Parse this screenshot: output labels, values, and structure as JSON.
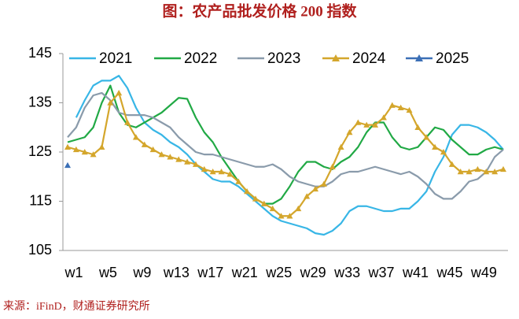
{
  "chart_data": {
    "type": "line",
    "title": "图：农产品批发价格 200 指数",
    "source": "来源：iFinD，财通证券研究所",
    "categories": [
      "w1",
      null,
      null,
      null,
      "w5",
      null,
      null,
      null,
      "w9",
      null,
      null,
      null,
      "w13",
      null,
      null,
      null,
      "w17",
      null,
      null,
      null,
      "w21",
      null,
      null,
      null,
      "w25",
      null,
      null,
      null,
      "w29",
      null,
      null,
      null,
      "w33",
      null,
      null,
      null,
      "w37",
      null,
      null,
      null,
      "w41",
      null,
      null,
      null,
      "w45",
      null,
      null,
      null,
      "w49",
      null,
      null,
      null
    ],
    "ylim": [
      105,
      145
    ],
    "yticks": [
      105,
      115,
      125,
      135,
      145
    ],
    "grid": false,
    "series": [
      {
        "name": "2021",
        "color": "#38b6e6",
        "marker": false,
        "values": [
          null,
          132,
          135.5,
          138.5,
          139.5,
          139.5,
          140.5,
          138,
          134,
          131,
          129.5,
          128.5,
          127,
          126,
          124.5,
          122.5,
          121,
          119.5,
          119,
          119,
          118,
          116.5,
          115,
          113.5,
          112,
          111,
          110.5,
          110,
          109.5,
          108.5,
          108.2,
          109,
          110.5,
          113,
          114,
          114,
          113.5,
          113,
          113,
          113.5,
          113.5,
          115,
          117,
          121,
          124,
          128.5,
          130.5,
          130.5,
          130,
          129,
          127.5,
          125.5
        ]
      },
      {
        "name": "2022",
        "color": "#21a945",
        "marker": false,
        "values": [
          127,
          127.5,
          128,
          130,
          135,
          138.5,
          133,
          130.5,
          130,
          131,
          132,
          133,
          134.5,
          136,
          135.8,
          132,
          129,
          127,
          124,
          121.5,
          119,
          117,
          115.5,
          114.5,
          114.5,
          115.5,
          118,
          121,
          123,
          123,
          122,
          121.5,
          123,
          124,
          126,
          129,
          131,
          131,
          128,
          126,
          125.5,
          126,
          128,
          130,
          129.5,
          127.5,
          126,
          124.5,
          124.5,
          125.5,
          126,
          125.5
        ]
      },
      {
        "name": "2023",
        "color": "#8a9bab",
        "marker": false,
        "values": [
          128,
          130,
          134,
          136.5,
          137,
          135.5,
          133,
          132.5,
          132.5,
          132.5,
          132,
          131,
          130,
          128,
          126.5,
          125,
          124.5,
          124.5,
          124,
          123.5,
          123,
          122.5,
          122,
          122,
          122.5,
          121.5,
          120,
          119,
          118.5,
          118,
          118,
          119,
          120.5,
          121,
          121,
          121.5,
          122,
          121.5,
          121,
          120.5,
          121,
          120,
          118.5,
          116.5,
          115.5,
          115.5,
          117,
          119,
          119.5,
          121,
          124,
          125.5
        ]
      },
      {
        "name": "2024",
        "color": "#d4a62c",
        "marker": true,
        "values": [
          126,
          125.5,
          125,
          124.5,
          126,
          135,
          137,
          131,
          128,
          126.5,
          125.5,
          124.5,
          124,
          123.5,
          123,
          122.5,
          121.5,
          121,
          121,
          120.5,
          119,
          117,
          115.5,
          114.5,
          113.5,
          112,
          112,
          113.5,
          116,
          117.5,
          118.5,
          122,
          126,
          129,
          131,
          130.5,
          130.5,
          132,
          134.5,
          134,
          133.5,
          130,
          128,
          126,
          125,
          122.5,
          121,
          121,
          121.5,
          121,
          121,
          121.5
        ]
      },
      {
        "name": "2025",
        "color": "#3b6fb6",
        "marker": true,
        "values": [
          122.3,
          null,
          null,
          null,
          null,
          null,
          null,
          null,
          null,
          null,
          null,
          null,
          null,
          null,
          null,
          null,
          null,
          null,
          null,
          null,
          null,
          null,
          null,
          null,
          null,
          null,
          null,
          null,
          null,
          null,
          null,
          null,
          null,
          null,
          null,
          null,
          null,
          null,
          null,
          null,
          null,
          null,
          null,
          null,
          null,
          null,
          null,
          null,
          null,
          null,
          null,
          null
        ]
      }
    ]
  }
}
